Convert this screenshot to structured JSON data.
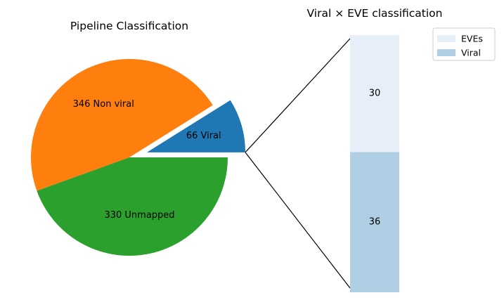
{
  "chart_data": [
    {
      "type": "pie",
      "title": "Pipeline Classification",
      "slices": [
        {
          "label": "Viral",
          "value": 66,
          "color": "#1f77b4",
          "exploded": true
        },
        {
          "label": "Non viral",
          "value": 346,
          "color": "#ff7f0e",
          "exploded": false
        },
        {
          "label": "Unmapped",
          "value": 330,
          "color": "#2ca02c",
          "exploded": false
        }
      ],
      "label_texts": [
        "66 Viral",
        "346 Non viral",
        "330 Unmapped"
      ]
    },
    {
      "type": "bar",
      "stacked": true,
      "title": "Viral × EVE classification",
      "series": [
        {
          "name": "Viral",
          "values": [
            36
          ],
          "color": "#b0cfe4"
        },
        {
          "name": "EVEs",
          "values": [
            30
          ],
          "color": "#e6eff8"
        }
      ],
      "data_labels": [
        "36",
        "30"
      ],
      "legend": {
        "placement": "top-right",
        "entries": [
          "EVEs",
          "Viral"
        ]
      }
    }
  ]
}
